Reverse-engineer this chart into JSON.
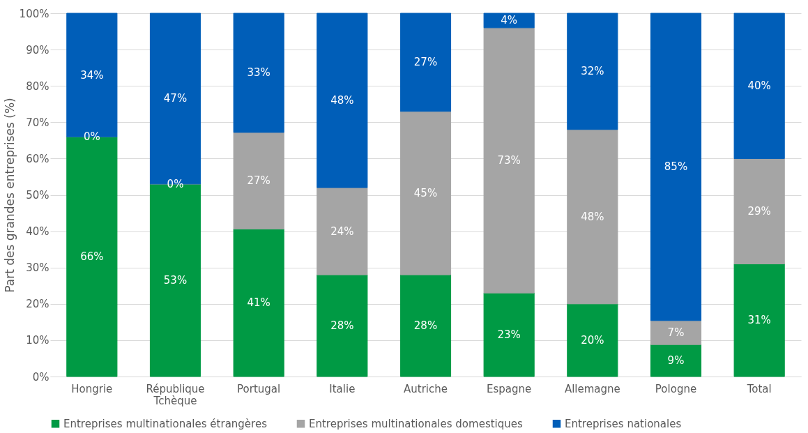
{
  "chart_data": {
    "type": "bar",
    "stacked": true,
    "ylabel": "Part des grandes entreprises (%)",
    "categories": [
      "Hongrie",
      "République Tchèque",
      "Portugal",
      "Italie",
      "Autriche",
      "Espagne",
      "Allemagne",
      "Pologne",
      "Total"
    ],
    "series": [
      {
        "name": "Entreprises multinationales étrangères",
        "color": "#009a44",
        "values": [
          66,
          53,
          40.6,
          28,
          28,
          23,
          20,
          8.8,
          31
        ],
        "value_labels": [
          "66%",
          "53%",
          "41%",
          "28%",
          "28%",
          "23%",
          "20%",
          "9%",
          "31%"
        ]
      },
      {
        "name": "Entreprises multinationales domestiques",
        "color": "#a5a5a5",
        "values": [
          0,
          0,
          26.6,
          24,
          45,
          73,
          48,
          6.6,
          29
        ],
        "value_labels": [
          "0%",
          "0%",
          "27%",
          "24%",
          "45%",
          "73%",
          "48%",
          "7%",
          "29%"
        ]
      },
      {
        "name": "Entreprises nationales",
        "color": "#005eb8",
        "values": [
          34,
          47,
          32.8,
          48,
          27,
          4,
          32,
          84.6,
          40
        ],
        "value_labels": [
          "34%",
          "47%",
          "33%",
          "48%",
          "27%",
          "4%",
          "32%",
          "85%",
          "40%"
        ]
      }
    ],
    "ylim": [
      0,
      100
    ],
    "yticks": [
      {
        "value": 0,
        "label": "0%"
      },
      {
        "value": 10,
        "label": "10%"
      },
      {
        "value": 20,
        "label": "20%"
      },
      {
        "value": 30,
        "label": "30%"
      },
      {
        "value": 40,
        "label": "40%"
      },
      {
        "value": 50,
        "label": "50%"
      },
      {
        "value": 60,
        "label": "60%"
      },
      {
        "value": 70,
        "label": "70%"
      },
      {
        "value": 80,
        "label": "80%"
      },
      {
        "value": 90,
        "label": "90%"
      },
      {
        "value": 100,
        "label": "100%"
      }
    ],
    "grid": "y",
    "legend": "bottom"
  }
}
